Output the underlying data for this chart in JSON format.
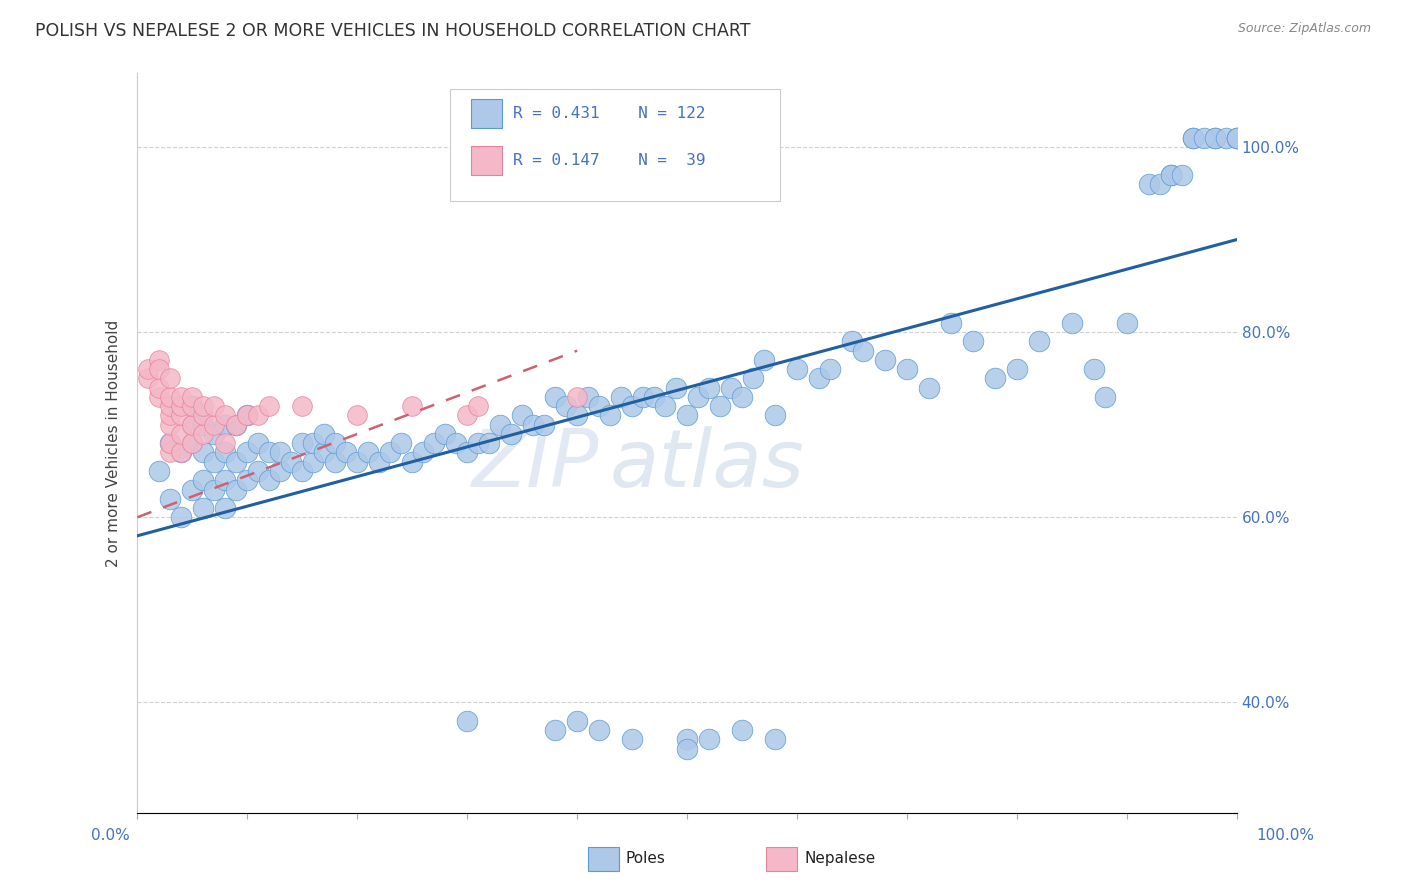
{
  "title": "POLISH VS NEPALESE 2 OR MORE VEHICLES IN HOUSEHOLD CORRELATION CHART",
  "source_text": "Source: ZipAtlas.com",
  "ylabel": "2 or more Vehicles in Household",
  "watermark_zip": "ZIP",
  "watermark_atlas": "atlas",
  "legend_blue_r": "R = 0.431",
  "legend_blue_n": "N = 122",
  "legend_pink_r": "R = 0.147",
  "legend_pink_n": "N =  39",
  "blue_scatter_color": "#adc8e8",
  "blue_edge_color": "#5b9bd5",
  "pink_scatter_color": "#f4b8c8",
  "pink_edge_color": "#e8829a",
  "blue_line_color": "#2060a0",
  "pink_line_color": "#d06070",
  "right_tick_color": "#4472c4",
  "grid_color": "#cccccc",
  "bg_color": "#ffffff",
  "xlim": [
    0,
    100
  ],
  "ylim": [
    28,
    108
  ],
  "yticks": [
    40,
    60,
    80,
    100
  ],
  "blue_line_x0": 0,
  "blue_line_x1": 100,
  "blue_line_y0": 58,
  "blue_line_y1": 90,
  "pink_line_x0": 0,
  "pink_line_x1": 40,
  "pink_line_y0": 60,
  "pink_line_y1": 78,
  "poles_x": [
    2,
    3,
    3,
    4,
    4,
    5,
    5,
    5,
    5,
    6,
    6,
    6,
    6,
    7,
    7,
    7,
    8,
    8,
    8,
    8,
    9,
    9,
    9,
    10,
    10,
    10,
    11,
    11,
    12,
    12,
    13,
    13,
    14,
    15,
    15,
    16,
    16,
    17,
    17,
    18,
    18,
    19,
    20,
    21,
    22,
    23,
    24,
    25,
    26,
    27,
    28,
    29,
    30,
    31,
    32,
    33,
    34,
    35,
    36,
    37,
    38,
    39,
    40,
    41,
    42,
    43,
    44,
    45,
    46,
    47,
    48,
    49,
    50,
    51,
    52,
    53,
    54,
    55,
    56,
    57,
    58,
    60,
    62,
    63,
    65,
    66,
    68,
    70,
    72,
    74,
    76,
    78,
    80,
    82,
    85,
    87,
    88,
    90,
    92,
    94,
    96,
    98,
    93,
    94,
    95,
    96,
    97,
    98,
    99,
    100,
    100,
    100,
    50,
    30,
    38,
    40,
    42,
    45,
    50,
    52,
    55,
    58
  ],
  "poles_y": [
    65,
    62,
    68,
    60,
    67,
    63,
    70,
    72,
    68,
    61,
    64,
    67,
    70,
    63,
    66,
    69,
    61,
    64,
    67,
    70,
    63,
    66,
    70,
    64,
    67,
    71,
    65,
    68,
    64,
    67,
    65,
    67,
    66,
    65,
    68,
    66,
    68,
    67,
    69,
    66,
    68,
    67,
    66,
    67,
    66,
    67,
    68,
    66,
    67,
    68,
    69,
    68,
    67,
    68,
    68,
    70,
    69,
    71,
    70,
    70,
    73,
    72,
    71,
    73,
    72,
    71,
    73,
    72,
    73,
    73,
    72,
    74,
    71,
    73,
    74,
    72,
    74,
    73,
    75,
    77,
    71,
    76,
    75,
    76,
    79,
    78,
    77,
    76,
    74,
    81,
    79,
    75,
    76,
    79,
    81,
    76,
    73,
    81,
    96,
    97,
    101,
    101,
    96,
    97,
    97,
    101,
    101,
    101,
    101,
    101,
    101,
    101,
    36,
    38,
    37,
    38,
    37,
    36,
    35,
    36,
    37,
    36
  ],
  "nep_x": [
    1,
    2,
    2,
    3,
    3,
    3,
    3,
    3,
    3,
    4,
    4,
    4,
    4,
    4,
    5,
    5,
    5,
    5,
    6,
    6,
    6,
    7,
    7,
    8,
    8,
    9,
    10,
    11,
    12,
    15,
    20,
    25,
    30,
    31,
    40,
    1,
    2,
    2,
    3
  ],
  "nep_y": [
    75,
    73,
    74,
    67,
    68,
    70,
    71,
    72,
    73,
    67,
    69,
    71,
    72,
    73,
    68,
    70,
    72,
    73,
    69,
    71,
    72,
    70,
    72,
    68,
    71,
    70,
    71,
    71,
    72,
    72,
    71,
    72,
    71,
    72,
    73,
    76,
    77,
    76,
    75
  ]
}
